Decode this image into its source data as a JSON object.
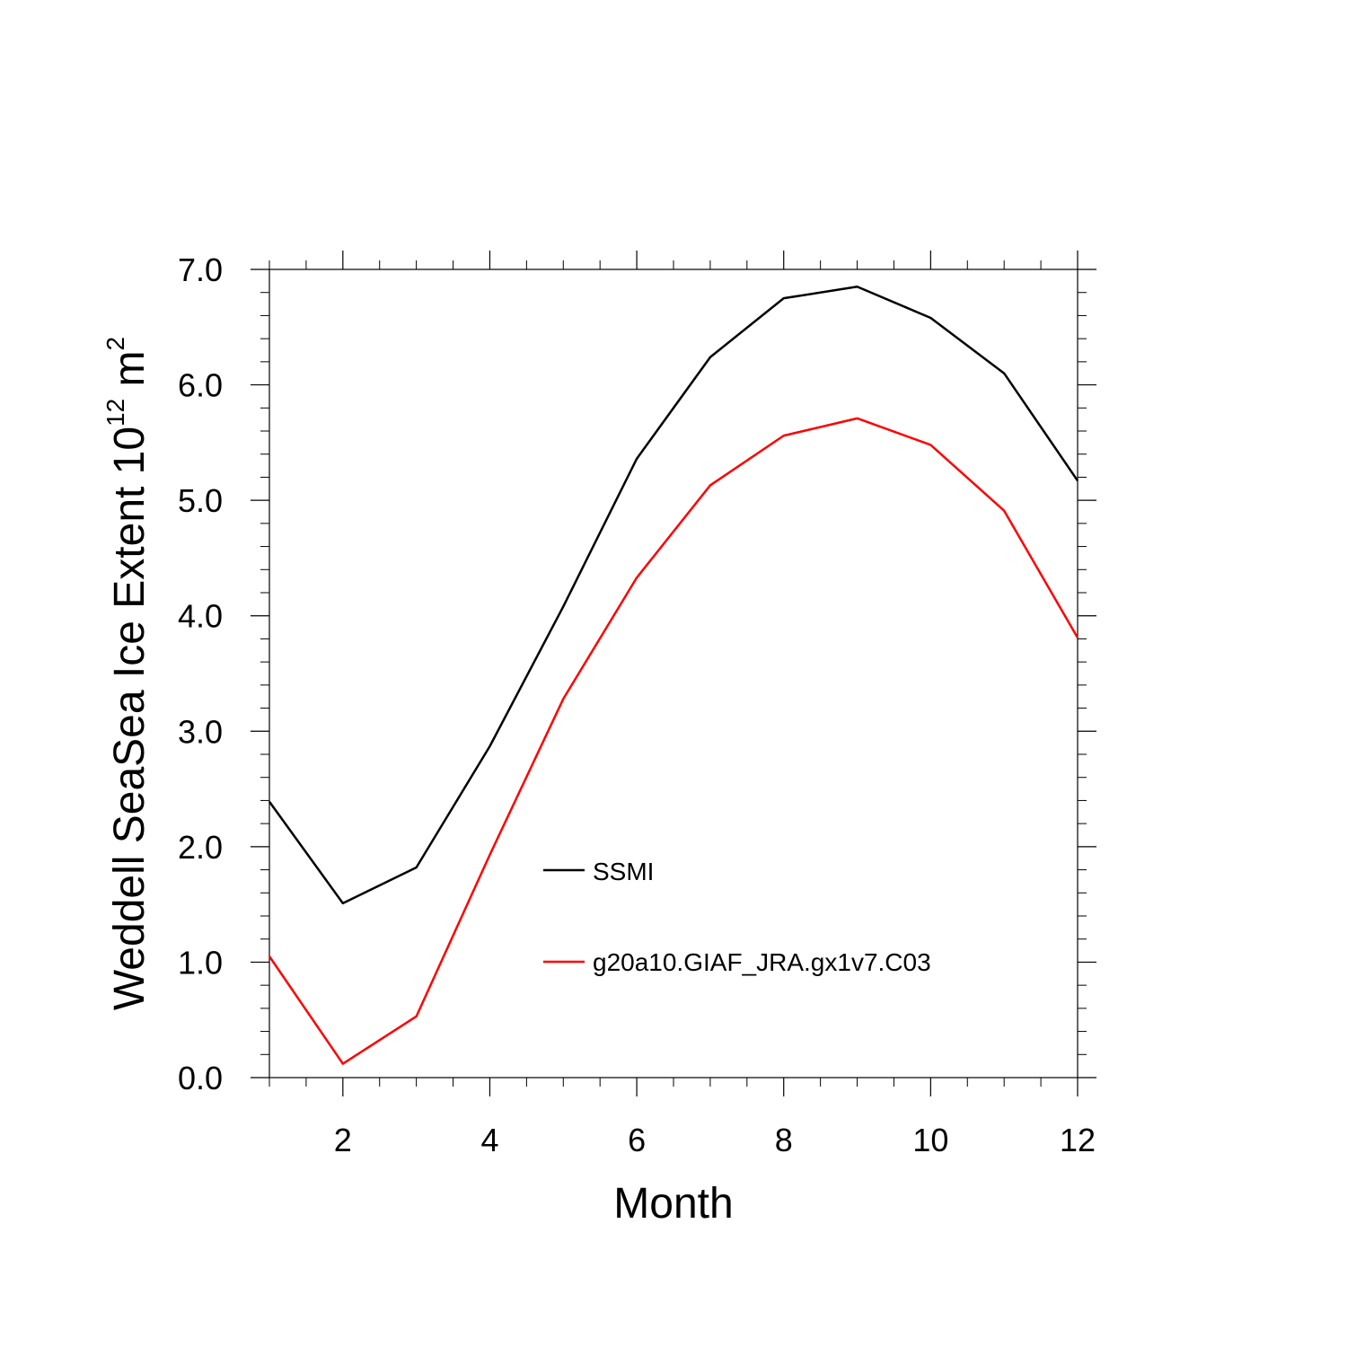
{
  "chart_data": {
    "type": "line",
    "title": "",
    "xlabel": "Month",
    "ylabel": {
      "prefix": "Weddell SeaSea Ice Extent 10",
      "exponent": "12",
      "unit": " m",
      "unit_exponent": "2"
    },
    "x": [
      1,
      2,
      3,
      4,
      5,
      6,
      7,
      8,
      9,
      10,
      11,
      12
    ],
    "xlim": [
      1,
      12
    ],
    "ylim": [
      0,
      7
    ],
    "xticks": [
      2,
      4,
      6,
      8,
      10,
      12
    ],
    "xtick_labels": [
      "2",
      "4",
      "6",
      "8",
      "10",
      "12"
    ],
    "yticks": [
      0,
      1,
      2,
      3,
      4,
      5,
      6,
      7
    ],
    "ytick_labels": [
      "0.0",
      "1.0",
      "2.0",
      "3.0",
      "4.0",
      "5.0",
      "6.0",
      "7.0"
    ],
    "grid": false,
    "legend_position": "center",
    "series": [
      {
        "name": "SSMI",
        "color": "#000000",
        "values": [
          2.39,
          1.51,
          1.82,
          2.87,
          4.08,
          5.36,
          6.24,
          6.75,
          6.85,
          6.58,
          6.1,
          5.17
        ]
      },
      {
        "name": "g20a10.GIAF_JRA.gx1v7.C03",
        "color": "#ff0000",
        "values": [
          1.05,
          0.12,
          0.53,
          1.93,
          3.28,
          4.33,
          5.13,
          5.56,
          5.71,
          5.48,
          4.91,
          3.81
        ]
      }
    ]
  }
}
